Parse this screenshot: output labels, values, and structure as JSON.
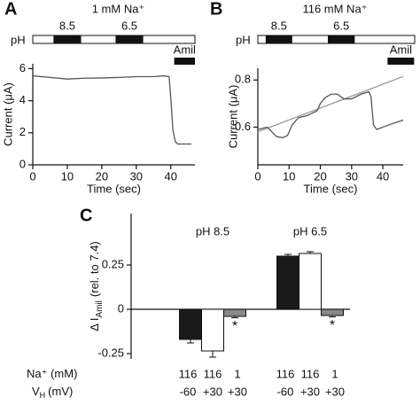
{
  "chart_data": [
    {
      "type": "line",
      "panel": "A",
      "title": "1 mM Na⁺",
      "x_label": "Time (sec)",
      "y_label": "Current (μA)",
      "xlim": [
        0,
        47
      ],
      "xticks": [
        0,
        10,
        20,
        30,
        40
      ],
      "ylim": [
        0,
        6.3
      ],
      "yticks": [
        0,
        2,
        4,
        6
      ],
      "ph_label": "pH",
      "ph_bars": [
        {
          "label": "8.5",
          "start": 6,
          "end": 14
        },
        {
          "label": "6.5",
          "start": 24,
          "end": 32
        }
      ],
      "drug_bar": {
        "label": "Amil",
        "start": 41,
        "end": 47
      },
      "series": [
        {
          "color": "#555555",
          "x": [
            0,
            5,
            10,
            15,
            20,
            25,
            30,
            35,
            38,
            39.5,
            40,
            40.6,
            41.3,
            42,
            46
          ],
          "values": [
            5.55,
            5.45,
            5.35,
            5.4,
            5.42,
            5.45,
            5.5,
            5.5,
            5.55,
            5.5,
            4.2,
            2.2,
            1.45,
            1.3,
            1.3
          ]
        }
      ]
    },
    {
      "type": "line",
      "panel": "B",
      "title": "116 mM Na⁺",
      "x_label": "Time (sec)",
      "y_label": "Current (μA)",
      "xlim": [
        0,
        46.5
      ],
      "xticks": [
        0,
        10,
        20,
        30,
        40
      ],
      "ylim": [
        0.44,
        0.85
      ],
      "yticks": [
        0.6,
        0.8
      ],
      "ph_label": "pH",
      "ph_bars": [
        {
          "label": "8.5",
          "start": 2.5,
          "end": 11
        },
        {
          "label": "6.5",
          "start": 22.4,
          "end": 31
        }
      ],
      "drug_bar": {
        "label": "Amil",
        "start": 41.5,
        "end": 50
      },
      "series": [
        {
          "color": "#999999",
          "x": [
            0,
            46.5
          ],
          "values": [
            0.58,
            0.815
          ]
        },
        {
          "color": "#555555",
          "x": [
            0,
            3,
            4.5,
            6,
            8,
            9.5,
            11,
            13,
            16,
            19,
            20,
            21.5,
            23.5,
            25.5,
            27.5,
            30,
            33,
            35.5,
            36.2,
            37,
            38,
            42,
            46.5
          ],
          "values": [
            0.59,
            0.6,
            0.58,
            0.56,
            0.555,
            0.565,
            0.61,
            0.64,
            0.65,
            0.67,
            0.7,
            0.725,
            0.74,
            0.74,
            0.72,
            0.72,
            0.74,
            0.75,
            0.73,
            0.61,
            0.59,
            0.61,
            0.63
          ]
        }
      ]
    },
    {
      "type": "bar",
      "panel": "C",
      "y_label": [
        "Δ I",
        "Amil",
        "(rel. to 7.4)"
      ],
      "categories": [
        "pH 8.5",
        "pH 6.5"
      ],
      "ylim": [
        -0.28,
        0.54
      ],
      "yticks": [
        -0.25,
        0,
        0.25
      ],
      "series": [
        {
          "color": "#1a1a1a",
          "values": [
            -0.17,
            0.3
          ],
          "errors": [
            0.02,
            0.01
          ]
        },
        {
          "color": "#ffffff",
          "values": [
            -0.235,
            0.315
          ],
          "errors": [
            0.035,
            0.01
          ]
        },
        {
          "color": "#888888",
          "values": [
            -0.04,
            -0.035
          ],
          "errors": [
            0.008,
            0.008
          ],
          "marker_labels": [
            "*",
            "*"
          ]
        }
      ],
      "conditions": [
        {
          "label": "Na⁺ (mM)",
          "values": [
            "116",
            "116",
            "1",
            "116",
            "116",
            "1"
          ]
        },
        {
          "label": "V",
          "sub": "H",
          "unit": "(mV)",
          "values": [
            "-60",
            "+30",
            "+30",
            "-60",
            "+30",
            "+30"
          ]
        }
      ]
    }
  ]
}
